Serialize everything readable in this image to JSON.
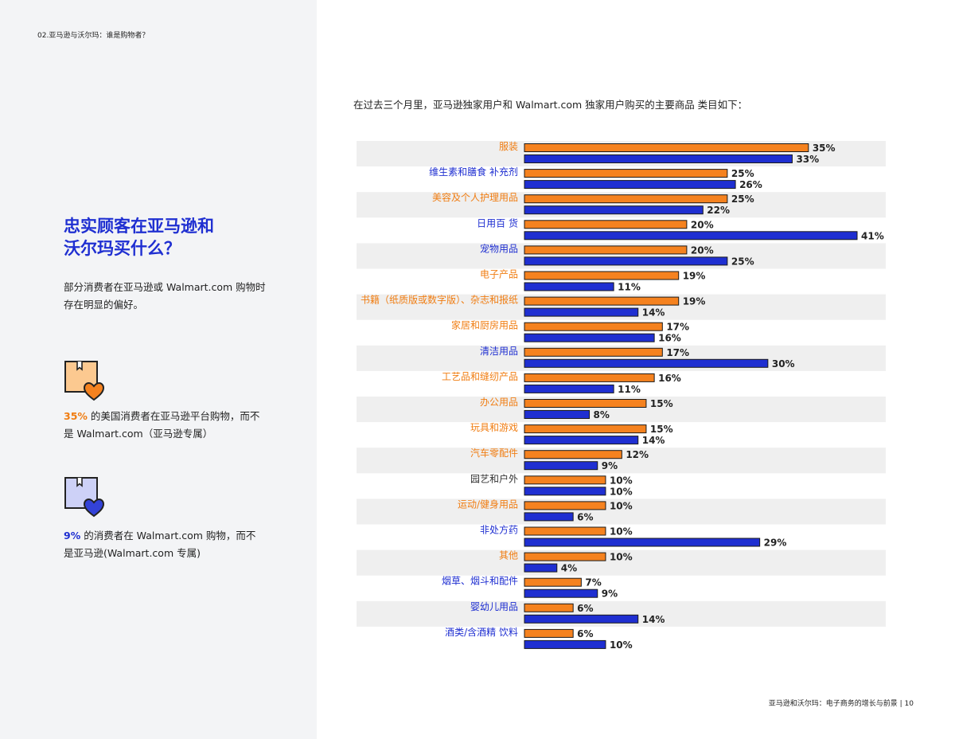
{
  "breadcrumb": "02.亚马逊与沃尔玛：谁是购物者？",
  "headline_line1": "忠实顾客在亚马逊和",
  "headline_line2": "沃尔玛买什么？",
  "intro_line1": "部分消费者在亚马逊或 Walmart.com 购物时",
  "intro_line2": "存在明显的偏好。",
  "stat_amazon": {
    "value": "35%",
    "text_rest_line1": " 的美国消费者在亚马逊平台购物，而不",
    "text_line2": "是 Walmart.com（亚马逊专属）",
    "icon": "box-heart-icon"
  },
  "stat_walmart": {
    "value": "9%",
    "text_rest_line1": " 的消费者在 Walmart.com 购物，而不",
    "text_line2": "是亚马逊(Walmart.com 专属)",
    "icon": "box-heart-icon"
  },
  "chart_intro": "在过去三个月里，亚马逊独家用户和 Walmart.com 独家用户购买的主要商品 类目如下：",
  "footer": "亚马逊和沃尔玛：电子商务的增长与前景 |  10",
  "colors": {
    "amazon": "#f5821f",
    "walmart": "#1f2fd1",
    "band": "#efefef"
  },
  "chart_data": {
    "type": "bar",
    "orientation": "horizontal",
    "categories": [
      "服装",
      "维生素和膳食 补充剂",
      "美容及个人护理用品",
      "日用百 货",
      "宠物用品",
      "电子产品",
      "书籍（纸质版或数字版）、杂志和报纸",
      "家居和厨房用品",
      "清洁用品",
      "工艺品和缝纫产品",
      "办公用品",
      "玩具和游戏",
      "汽车零配件",
      "园艺和户外",
      "运动/健身用品",
      "非处方药",
      "其他",
      "烟草、烟斗和配件",
      "婴幼儿用品",
      "酒类/含酒精 饮料"
    ],
    "label_colors": [
      "#f07d12",
      "#1f2fd1",
      "#f07d12",
      "#1f2fd1",
      "#1f2fd1",
      "#f07d12",
      "#f07d12",
      "#f07d12",
      "#1f2fd1",
      "#f07d12",
      "#f07d12",
      "#f07d12",
      "#f07d12",
      "#333333",
      "#f07d12",
      "#1f2fd1",
      "#f07d12",
      "#1f2fd1",
      "#1f2fd1",
      "#1f2fd1"
    ],
    "series": [
      {
        "values": [
          35,
          25,
          25,
          20,
          20,
          19,
          19,
          17,
          17,
          16,
          15,
          15,
          12,
          10,
          10,
          10,
          10,
          7,
          6,
          6
        ]
      },
      {
        "values": [
          33,
          26,
          22,
          41,
          25,
          11,
          14,
          16,
          30,
          11,
          8,
          14,
          9,
          10,
          6,
          29,
          4,
          9,
          14,
          10
        ]
      }
    ],
    "value_suffix": "%",
    "xlim": [
      0,
      41
    ],
    "grid": false,
    "legend": "none"
  }
}
